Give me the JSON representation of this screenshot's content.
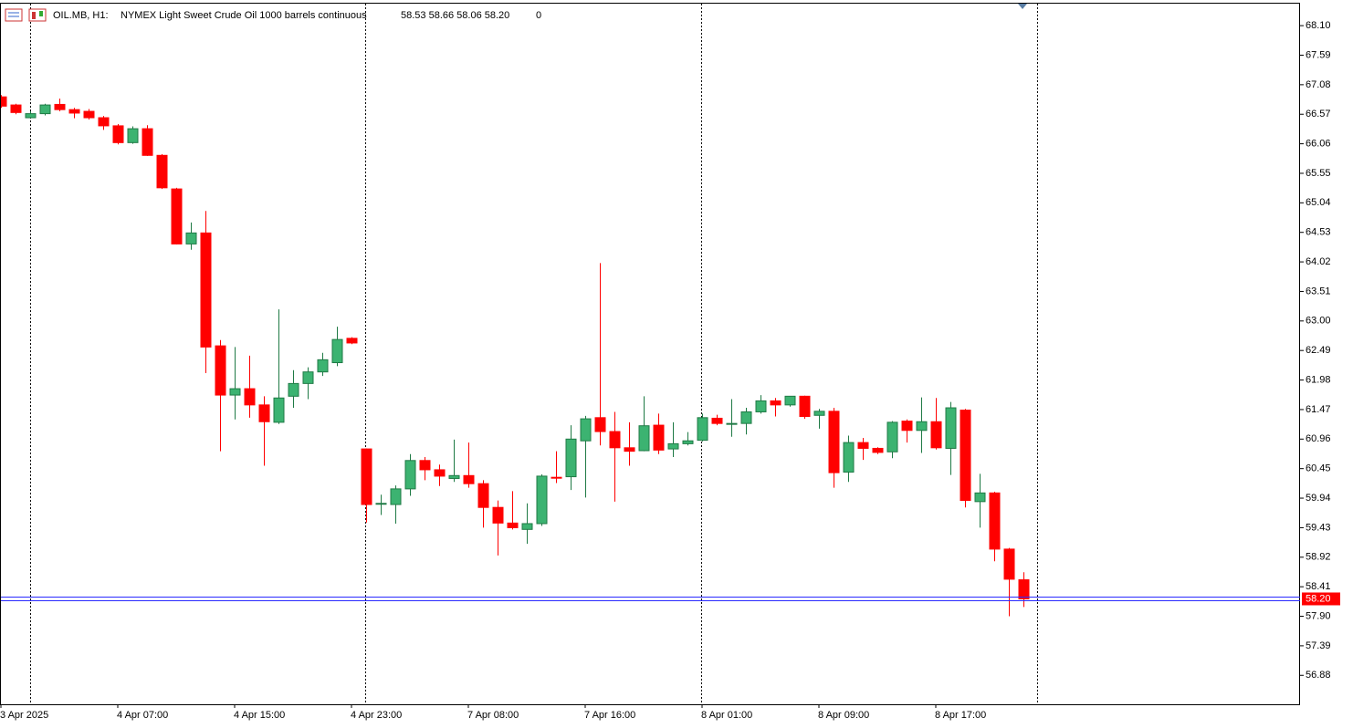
{
  "chart_data": {
    "type": "candlestick",
    "header": {
      "symbol": "OIL.MB, H1:",
      "description": "NYMEX Light Sweet Crude Oil 1000 barrels continuous",
      "ohlc": "58.53 58.66 58.06 58.20",
      "volume": "0"
    },
    "categories": [
      "3 Apr 2025",
      null,
      null,
      null,
      null,
      null,
      null,
      null,
      "4 Apr 07:00",
      null,
      null,
      null,
      null,
      null,
      null,
      null,
      "4 Apr 15:00",
      null,
      null,
      null,
      null,
      null,
      null,
      null,
      "4 Apr 23:00",
      null,
      null,
      null,
      null,
      null,
      null,
      null,
      "7 Apr 08:00",
      null,
      null,
      null,
      null,
      null,
      null,
      null,
      "7 Apr 16:00",
      null,
      null,
      null,
      null,
      null,
      null,
      null,
      "8 Apr 01:00",
      null,
      null,
      null,
      null,
      null,
      null,
      null,
      "8 Apr 09:00",
      null,
      null,
      null,
      null,
      null,
      null,
      null,
      "8 Apr 17:00",
      null,
      null,
      null,
      null,
      null,
      null
    ],
    "open": [
      66.87,
      66.73,
      66.51,
      66.58,
      66.74,
      66.65,
      66.62,
      66.51,
      66.37,
      66.08,
      66.32,
      65.86,
      65.28,
      64.33,
      64.52,
      62.57,
      61.72,
      61.83,
      61.55,
      61.25,
      61.7,
      61.92,
      62.12,
      62.28,
      62.7,
      60.79,
      59.84,
      59.83,
      60.1,
      60.59,
      60.43,
      60.28,
      60.33,
      60.19,
      59.78,
      59.51,
      59.4,
      59.5,
      60.3,
      60.31,
      60.93,
      61.33,
      61.09,
      60.81,
      60.76,
      61.2,
      60.79,
      60.88,
      60.94,
      61.32,
      61.22,
      61.23,
      61.43,
      61.62,
      61.55,
      61.7,
      61.37,
      61.44,
      60.39,
      60.9,
      60.8,
      60.74,
      61.27,
      61.11,
      61.26,
      60.8,
      61.46,
      59.88,
      60.03,
      59.06,
      58.53
    ],
    "high": [
      66.9,
      66.75,
      66.62,
      66.75,
      66.84,
      66.68,
      66.66,
      66.54,
      66.4,
      66.36,
      66.38,
      65.88,
      65.3,
      64.7,
      64.9,
      62.67,
      62.55,
      62.4,
      61.7,
      63.2,
      62.15,
      62.2,
      62.45,
      62.9,
      62.72,
      60.8,
      60.0,
      60.16,
      60.7,
      60.65,
      60.52,
      60.95,
      60.9,
      60.25,
      59.9,
      60.06,
      59.85,
      60.35,
      60.75,
      61.2,
      61.36,
      64.0,
      61.43,
      61.25,
      61.7,
      61.4,
      61.25,
      61.08,
      61.4,
      61.38,
      61.65,
      61.5,
      61.72,
      61.67,
      61.7,
      61.71,
      61.48,
      61.5,
      61.02,
      60.98,
      60.82,
      61.27,
      61.3,
      61.68,
      61.67,
      61.6,
      61.48,
      60.36,
      60.05,
      59.08,
      58.66
    ],
    "low": [
      66.68,
      66.57,
      66.5,
      66.55,
      66.62,
      66.5,
      66.48,
      66.3,
      66.05,
      66.06,
      65.85,
      65.28,
      64.32,
      64.23,
      62.1,
      60.75,
      61.3,
      61.33,
      60.5,
      61.22,
      61.5,
      61.65,
      62.05,
      62.22,
      62.6,
      59.52,
      59.65,
      59.5,
      59.98,
      60.25,
      60.15,
      60.22,
      60.12,
      59.43,
      58.95,
      59.4,
      59.15,
      59.46,
      60.2,
      60.08,
      59.95,
      60.85,
      59.88,
      60.5,
      60.75,
      60.7,
      60.65,
      60.85,
      60.92,
      61.2,
      61.0,
      61.04,
      61.4,
      61.35,
      61.52,
      61.31,
      61.14,
      60.12,
      60.22,
      60.6,
      60.7,
      60.63,
      60.9,
      60.72,
      60.78,
      60.34,
      59.78,
      59.43,
      58.85,
      57.9,
      58.06
    ],
    "close": [
      66.71,
      66.6,
      66.58,
      66.73,
      66.65,
      66.59,
      66.51,
      66.37,
      66.08,
      66.32,
      65.86,
      65.3,
      64.33,
      64.52,
      62.55,
      61.72,
      61.83,
      61.55,
      61.26,
      61.67,
      61.92,
      62.12,
      62.33,
      62.68,
      62.62,
      59.83,
      59.85,
      60.1,
      60.59,
      60.43,
      60.32,
      60.33,
      60.19,
      59.78,
      59.51,
      59.43,
      59.5,
      60.32,
      60.29,
      60.96,
      61.31,
      61.09,
      60.81,
      60.75,
      61.19,
      60.77,
      60.88,
      60.93,
      61.33,
      61.23,
      61.23,
      61.43,
      61.62,
      61.55,
      61.7,
      61.35,
      61.44,
      60.38,
      60.9,
      60.8,
      60.73,
      61.25,
      61.11,
      61.26,
      60.81,
      61.5,
      59.9,
      60.03,
      59.06,
      58.54,
      58.2
    ],
    "up_color": "#3cb371",
    "down_color": "#ff0000",
    "ylim": [
      56.38,
      68.48
    ],
    "yticks": [
      56.88,
      57.39,
      {
        "value": 57.9,
        "label": "57.90"
      },
      58.41,
      58.92,
      59.43,
      59.94,
      60.45,
      60.96,
      61.47,
      61.98,
      62.49,
      {
        "value": 63,
        "label": "63.00"
      },
      63.51,
      64.02,
      64.53,
      65.04,
      65.55,
      66.06,
      66.57,
      67.08,
      67.59,
      {
        "value": 68.1,
        "label": "68.10"
      }
    ],
    "last_price": {
      "value": 58.2,
      "label": "58.20"
    }
  }
}
